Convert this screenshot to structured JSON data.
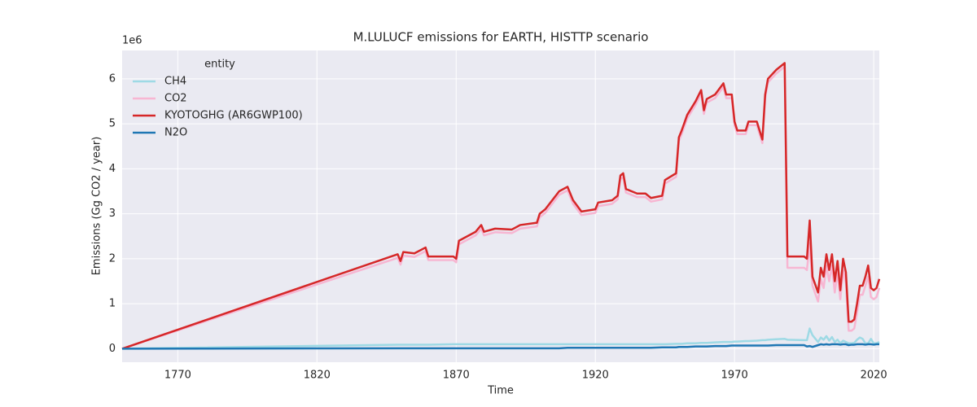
{
  "chart_data": {
    "type": "line",
    "title": "M.LULUCF emissions for EARTH, HISTTP scenario",
    "x_label": "Time",
    "y_label": "Emissions (Gg CO2 / year)",
    "y_offset_label": "1e6",
    "legend_title": "entity",
    "legend_position": "upper left",
    "grid": true,
    "xlim": [
      1750,
      2022
    ],
    "ylim": [
      -0.3,
      6.63
    ],
    "xticks": [
      1770,
      1820,
      1870,
      1920,
      1970,
      2020
    ],
    "yticks": [
      0,
      1,
      2,
      3,
      4,
      5,
      6
    ],
    "x": [
      1750,
      1849,
      1850,
      1851,
      1855,
      1859,
      1860,
      1869,
      1870,
      1871,
      1877,
      1879,
      1880,
      1884,
      1890,
      1893,
      1899,
      1900,
      1902,
      1907,
      1910,
      1912,
      1915,
      1920,
      1921,
      1926,
      1928,
      1929,
      1930,
      1931,
      1935,
      1938,
      1940,
      1944,
      1945,
      1949,
      1950,
      1951,
      1953,
      1956,
      1958,
      1959,
      1960,
      1963,
      1966,
      1967,
      1969,
      1970,
      1971,
      1974,
      1975,
      1978,
      1980,
      1981,
      1982,
      1985,
      1988,
      1989,
      1995,
      1996,
      1997,
      1998,
      2000,
      2001,
      2002,
      2003,
      2004,
      2005,
      2006,
      2007,
      2008,
      2009,
      2010,
      2011,
      2012,
      2013,
      2014,
      2015,
      2016,
      2017,
      2018,
      2019,
      2020,
      2021,
      2022
    ],
    "series": [
      {
        "name": "CH4",
        "color": "#9edae5",
        "values": [
          0,
          0.09,
          0.09,
          0.09,
          0.09,
          0.09,
          0.09,
          0.1,
          0.1,
          0.1,
          0.1,
          0.1,
          0.1,
          0.1,
          0.1,
          0.1,
          0.1,
          0.1,
          0.1,
          0.1,
          0.1,
          0.1,
          0.1,
          0.1,
          0.1,
          0.1,
          0.1,
          0.1,
          0.1,
          0.1,
          0.1,
          0.1,
          0.1,
          0.1,
          0.1,
          0.11,
          0.11,
          0.11,
          0.12,
          0.12,
          0.13,
          0.13,
          0.13,
          0.14,
          0.15,
          0.15,
          0.15,
          0.16,
          0.16,
          0.17,
          0.17,
          0.18,
          0.19,
          0.19,
          0.2,
          0.21,
          0.22,
          0.2,
          0.19,
          0.19,
          0.45,
          0.3,
          0.15,
          0.25,
          0.2,
          0.28,
          0.18,
          0.26,
          0.15,
          0.2,
          0.12,
          0.18,
          0.15,
          0.12,
          0.12,
          0.13,
          0.2,
          0.25,
          0.22,
          0.12,
          0.12,
          0.22,
          0.12,
          0.12,
          0.15
        ]
      },
      {
        "name": "CO2",
        "color": "#f7b6d2",
        "values": [
          0,
          2.02,
          1.87,
          2.07,
          2.04,
          2.17,
          1.97,
          1.97,
          1.92,
          2.32,
          2.52,
          2.67,
          2.52,
          2.59,
          2.57,
          2.67,
          2.72,
          2.92,
          3.02,
          3.42,
          3.52,
          3.22,
          2.97,
          3.02,
          3.17,
          3.22,
          3.32,
          3.77,
          3.82,
          3.47,
          3.37,
          3.37,
          3.27,
          3.32,
          3.67,
          3.82,
          4.62,
          4.77,
          5.12,
          5.42,
          5.67,
          5.22,
          5.47,
          5.57,
          5.82,
          5.57,
          5.57,
          4.97,
          4.77,
          4.77,
          4.97,
          4.97,
          4.57,
          5.57,
          5.92,
          6.12,
          6.27,
          1.8,
          1.8,
          1.75,
          2.35,
          1.4,
          1.05,
          1.55,
          1.35,
          1.85,
          1.5,
          1.85,
          1.25,
          1.7,
          1.1,
          1.75,
          1.45,
          0.4,
          0.4,
          0.45,
          0.8,
          1.2,
          1.2,
          1.4,
          1.6,
          1.15,
          1.1,
          1.15,
          1.35
        ]
      },
      {
        "name": "KYOTOGHG (AR6GWP100)",
        "color": "#d62728",
        "values": [
          0,
          2.1,
          1.95,
          2.15,
          2.12,
          2.25,
          2.05,
          2.05,
          2.0,
          2.4,
          2.6,
          2.75,
          2.6,
          2.67,
          2.65,
          2.75,
          2.8,
          3.0,
          3.1,
          3.5,
          3.6,
          3.3,
          3.05,
          3.1,
          3.25,
          3.3,
          3.4,
          3.85,
          3.9,
          3.55,
          3.45,
          3.45,
          3.35,
          3.4,
          3.75,
          3.9,
          4.7,
          4.85,
          5.2,
          5.5,
          5.75,
          5.3,
          5.55,
          5.65,
          5.9,
          5.65,
          5.65,
          5.05,
          4.85,
          4.85,
          5.05,
          5.05,
          4.65,
          5.65,
          6.0,
          6.2,
          6.35,
          2.05,
          2.05,
          2.0,
          2.85,
          1.6,
          1.25,
          1.8,
          1.6,
          2.1,
          1.75,
          2.1,
          1.5,
          1.95,
          1.3,
          2.0,
          1.7,
          0.6,
          0.6,
          0.65,
          1.0,
          1.4,
          1.4,
          1.6,
          1.85,
          1.35,
          1.3,
          1.35,
          1.55
        ]
      },
      {
        "name": "N2O",
        "color": "#1f77b4",
        "values": [
          0,
          0.01,
          0.01,
          0.01,
          0.01,
          0.01,
          0.01,
          0.01,
          0.01,
          0.01,
          0.01,
          0.01,
          0.01,
          0.01,
          0.01,
          0.01,
          0.01,
          0.01,
          0.01,
          0.01,
          0.02,
          0.02,
          0.02,
          0.02,
          0.02,
          0.02,
          0.02,
          0.02,
          0.02,
          0.02,
          0.02,
          0.02,
          0.02,
          0.03,
          0.03,
          0.03,
          0.04,
          0.04,
          0.04,
          0.05,
          0.05,
          0.05,
          0.05,
          0.06,
          0.06,
          0.06,
          0.07,
          0.07,
          0.07,
          0.07,
          0.07,
          0.07,
          0.07,
          0.07,
          0.07,
          0.08,
          0.08,
          0.08,
          0.08,
          0.05,
          0.06,
          0.04,
          0.08,
          0.1,
          0.09,
          0.1,
          0.09,
          0.1,
          0.1,
          0.1,
          0.09,
          0.1,
          0.1,
          0.08,
          0.09,
          0.09,
          0.1,
          0.1,
          0.1,
          0.09,
          0.1,
          0.1,
          0.09,
          0.1,
          0.1
        ]
      }
    ]
  }
}
